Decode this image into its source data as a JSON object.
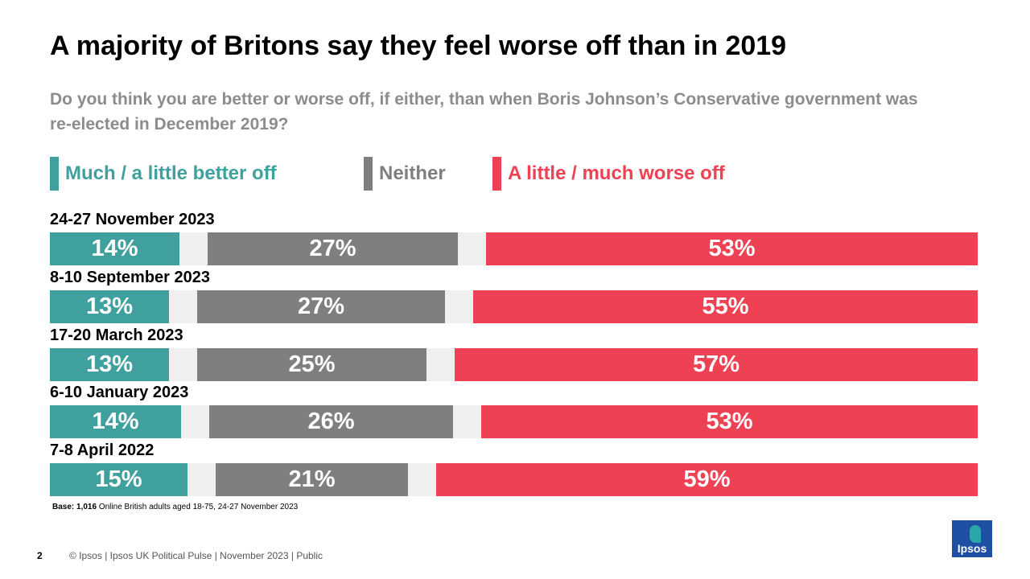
{
  "title": "A majority of Britons say they feel worse off than in 2019",
  "subtitle": "Do you think you are better or worse off, if either, than when Boris Johnson’s Conservative government was re-elected in December 2019?",
  "colors": {
    "better": "#3fa09e",
    "neither": "#7f7f7f",
    "worse": "#ee4154",
    "track": "#efefef"
  },
  "legend": [
    {
      "key": "better",
      "label": "Much / a little better off"
    },
    {
      "key": "neither",
      "label": "Neither"
    },
    {
      "key": "worse",
      "label": "A little / much worse off"
    }
  ],
  "chart_data": {
    "type": "bar",
    "orientation": "horizontal-stacked",
    "title": "A majority of Britons say they feel worse off than in 2019",
    "categories": [
      "24-27 November 2023",
      "8-10 September 2023",
      "17-20 March 2023",
      "6-10 January 2023",
      "7-8 April 2022"
    ],
    "series": [
      {
        "name": "Much / a little better off",
        "values": [
          14,
          13,
          13,
          14,
          15
        ],
        "labels": [
          "14%",
          "13%",
          "13%",
          "14%",
          "15%"
        ]
      },
      {
        "name": "Neither",
        "values": [
          27,
          27,
          25,
          26,
          21
        ],
        "labels": [
          "27%",
          "27%",
          "25%",
          "26%",
          "21%"
        ]
      },
      {
        "name": "A little / much worse off",
        "values": [
          53,
          55,
          57,
          53,
          59
        ],
        "labels": [
          "53%",
          "55%",
          "57%",
          "53%",
          "59%"
        ]
      }
    ],
    "xlim": [
      0,
      100
    ]
  },
  "base": {
    "label": "Base:",
    "count": "1,016",
    "text": "Online British adults aged 18-75, 24-27 November 2023"
  },
  "page_number": "2",
  "footer": "© Ipsos  |  Ipsos UK Political Pulse | November  2023 | Public",
  "logo": "Ipsos"
}
